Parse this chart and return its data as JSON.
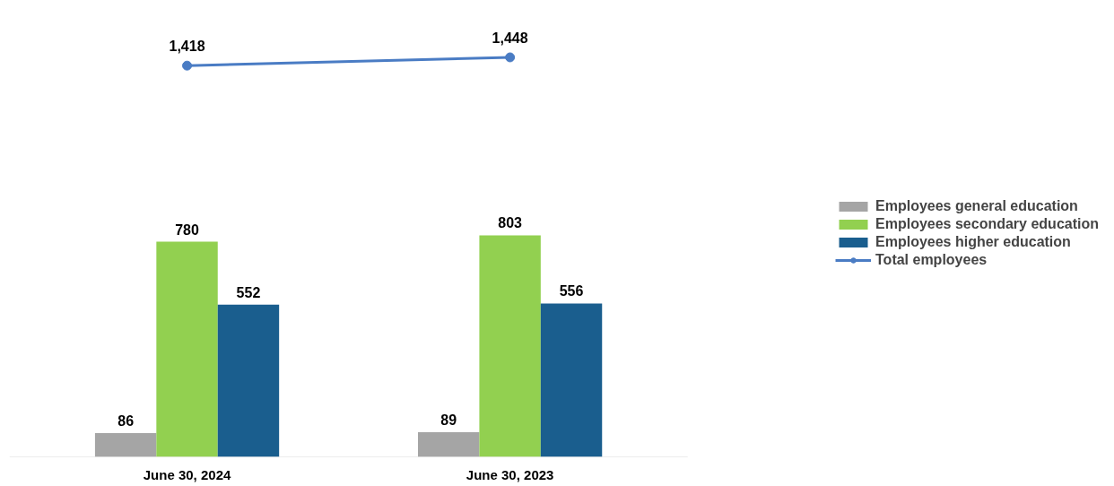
{
  "chart_data": {
    "type": "bar",
    "categories": [
      "June 30, 2024",
      "June 30, 2023"
    ],
    "series": [
      {
        "name": "Employees general education",
        "color": "#a5a5a5",
        "values": [
          86,
          89
        ]
      },
      {
        "name": "Employees secondary education",
        "color": "#92d050",
        "values": [
          780,
          803
        ]
      },
      {
        "name": "Employees higher education",
        "color": "#1a5e8e",
        "values": [
          552,
          556
        ]
      },
      {
        "name": "Total employees",
        "type": "line",
        "color": "#4a7cc4",
        "values": [
          1418,
          1448
        ],
        "value_labels": [
          "1,418",
          "1,448"
        ],
        "marker": "circle"
      }
    ],
    "data_labels": true,
    "legend": "right",
    "grid": false
  }
}
